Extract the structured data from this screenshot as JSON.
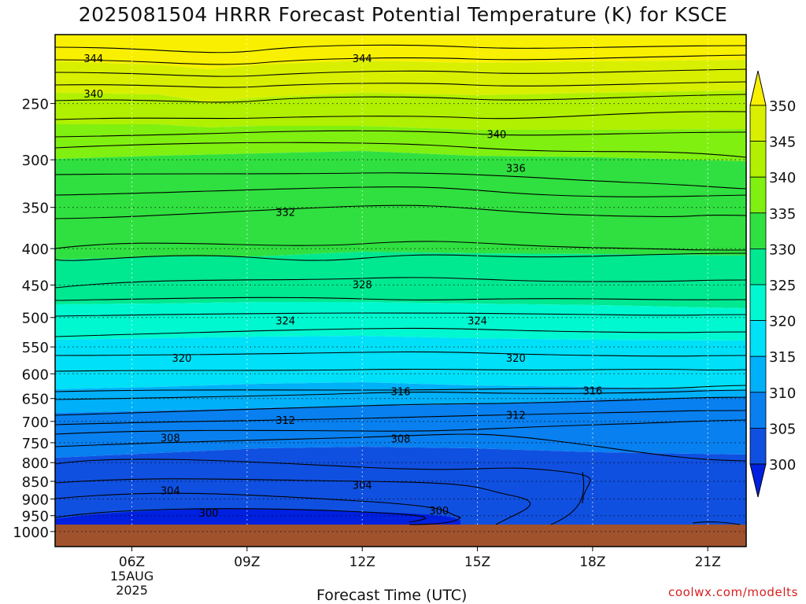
{
  "page": {
    "title": "2025081504 HRRR Forecast Potential Temperature (K) for KSCE",
    "credit": "coolwx.com/modelts"
  },
  "chart_data": {
    "type": "heatmap",
    "title": "2025081504 HRRR Forecast Potential Temperature (K) for KSCE",
    "xlabel": "Forecast Time (UTC)",
    "ylabel": "",
    "x_ticks": [
      {
        "hour": 6,
        "label": "06Z",
        "sub": [
          "15AUG",
          "2025"
        ]
      },
      {
        "hour": 9,
        "label": "09Z",
        "sub": []
      },
      {
        "hour": 12,
        "label": "12Z",
        "sub": []
      },
      {
        "hour": 15,
        "label": "15Z",
        "sub": []
      },
      {
        "hour": 18,
        "label": "18Z",
        "sub": []
      },
      {
        "hour": 21,
        "label": "21Z",
        "sub": []
      }
    ],
    "x_range_hours": [
      4,
      22
    ],
    "y_ticks": [
      "250",
      "300",
      "350",
      "400",
      "450",
      "500",
      "550",
      "600",
      "650",
      "700",
      "750",
      "800",
      "850",
      "900",
      "950",
      "1000"
    ],
    "y_range_hpa": [
      200,
      1050
    ],
    "y_scale": "log-pressure",
    "grid": true,
    "colorbar": {
      "levels": [
        "350",
        "345",
        "340",
        "335",
        "330",
        "325",
        "320",
        "315",
        "310",
        "305",
        "300"
      ],
      "colors": [
        "#f8f000",
        "#d8f000",
        "#b0f000",
        "#80f010",
        "#30e040",
        "#00e890",
        "#00f8d0",
        "#00e0f8",
        "#00b0f8",
        "#0880f0",
        "#1050e0",
        "#0020e0"
      ]
    },
    "ground_color": "#a0522d",
    "contour_labels": [
      {
        "value": "344",
        "hour": 5.0,
        "hpa": 216
      },
      {
        "value": "344",
        "hour": 12.0,
        "hpa": 216
      },
      {
        "value": "340",
        "hour": 5.0,
        "hpa": 242
      },
      {
        "value": "340",
        "hour": 15.5,
        "hpa": 276
      },
      {
        "value": "336",
        "hour": 16.0,
        "hpa": 308
      },
      {
        "value": "332",
        "hour": 10.0,
        "hpa": 355
      },
      {
        "value": "328",
        "hour": 12.0,
        "hpa": 449
      },
      {
        "value": "324",
        "hour": 10.0,
        "hpa": 505
      },
      {
        "value": "324",
        "hour": 15.0,
        "hpa": 505
      },
      {
        "value": "320",
        "hour": 7.3,
        "hpa": 570
      },
      {
        "value": "320",
        "hour": 16.0,
        "hpa": 570
      },
      {
        "value": "316",
        "hour": 13.0,
        "hpa": 635
      },
      {
        "value": "316",
        "hour": 18.0,
        "hpa": 633
      },
      {
        "value": "312",
        "hour": 10.0,
        "hpa": 697
      },
      {
        "value": "312",
        "hour": 16.0,
        "hpa": 685
      },
      {
        "value": "308",
        "hour": 7.0,
        "hpa": 738
      },
      {
        "value": "308",
        "hour": 13.0,
        "hpa": 740
      },
      {
        "value": "304",
        "hour": 7.0,
        "hpa": 875
      },
      {
        "value": "304",
        "hour": 12.0,
        "hpa": 860
      },
      {
        "value": "300",
        "hour": 8.0,
        "hpa": 941
      },
      {
        "value": "300",
        "hour": 14.0,
        "hpa": 934
      }
    ]
  }
}
